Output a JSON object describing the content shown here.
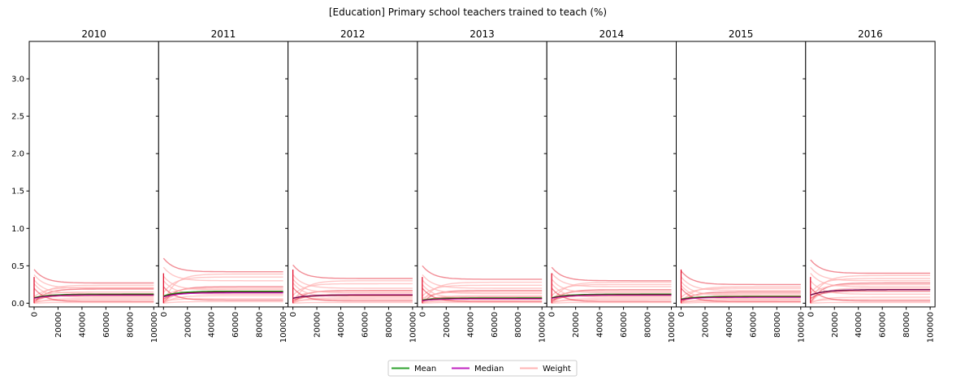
{
  "figure": {
    "title": "[Education] Primary school teachers trained to teach (%)"
  },
  "legend": {
    "placement": "bottom-center",
    "items": [
      {
        "label": "Mean",
        "color": "#2ca02c"
      },
      {
        "label": "Median",
        "color": "#c020c0"
      },
      {
        "label": "Weight",
        "color": "#ffb3b3"
      }
    ]
  },
  "axes": {
    "xlim": [
      0,
      100000
    ],
    "ylim": [
      -0.05,
      3.5
    ],
    "xticks": [
      "0",
      "20000",
      "40000",
      "60000",
      "80000",
      "100000"
    ],
    "xtick_values": [
      0,
      20000,
      40000,
      60000,
      80000,
      100000
    ],
    "yticks": [
      "0.0",
      "0.5",
      "1.0",
      "1.5",
      "2.0",
      "2.5",
      "3.0"
    ],
    "ytick_values": [
      0,
      0.5,
      1.0,
      1.5,
      2.0,
      2.5,
      3.0
    ]
  },
  "chart_data": [
    {
      "type": "line",
      "title": "2010",
      "mean": 0.12,
      "median": 0.11,
      "weights": [
        0.27,
        0.24,
        0.21,
        0.2,
        0.19,
        0.15,
        0.13,
        0.12,
        0.1,
        0.08,
        0.06,
        0.04,
        0.02,
        0.01
      ]
    },
    {
      "type": "line",
      "title": "2011",
      "mean": 0.16,
      "median": 0.14,
      "weights": [
        0.42,
        0.39,
        0.35,
        0.3,
        0.22,
        0.2,
        0.18,
        0.16,
        0.14,
        0.12,
        0.1,
        0.06,
        0.04,
        0.02
      ]
    },
    {
      "type": "line",
      "title": "2012",
      "mean": 0.11,
      "median": 0.11,
      "weights": [
        0.33,
        0.3,
        0.26,
        0.2,
        0.17,
        0.16,
        0.14,
        0.12,
        0.1,
        0.09,
        0.07,
        0.05,
        0.03,
        0.01
      ]
    },
    {
      "type": "line",
      "title": "2013",
      "mean": 0.07,
      "median": 0.06,
      "weights": [
        0.32,
        0.28,
        0.24,
        0.2,
        0.17,
        0.15,
        0.13,
        0.1,
        0.08,
        0.07,
        0.05,
        0.03,
        0.02,
        0.01
      ]
    },
    {
      "type": "line",
      "title": "2014",
      "mean": 0.12,
      "median": 0.11,
      "weights": [
        0.3,
        0.28,
        0.25,
        0.22,
        0.18,
        0.16,
        0.14,
        0.12,
        0.1,
        0.08,
        0.06,
        0.04,
        0.02,
        0.01
      ]
    },
    {
      "type": "line",
      "title": "2015",
      "mean": 0.09,
      "median": 0.08,
      "weights": [
        0.25,
        0.22,
        0.2,
        0.17,
        0.15,
        0.13,
        0.11,
        0.1,
        0.08,
        0.06,
        0.05,
        0.03,
        0.02,
        0.01
      ]
    },
    {
      "type": "line",
      "title": "2016",
      "mean": 0.18,
      "median": 0.18,
      "weights": [
        0.4,
        0.37,
        0.33,
        0.3,
        0.27,
        0.25,
        0.22,
        0.2,
        0.16,
        0.12,
        0.08,
        0.05,
        0.03,
        0.01
      ]
    }
  ]
}
